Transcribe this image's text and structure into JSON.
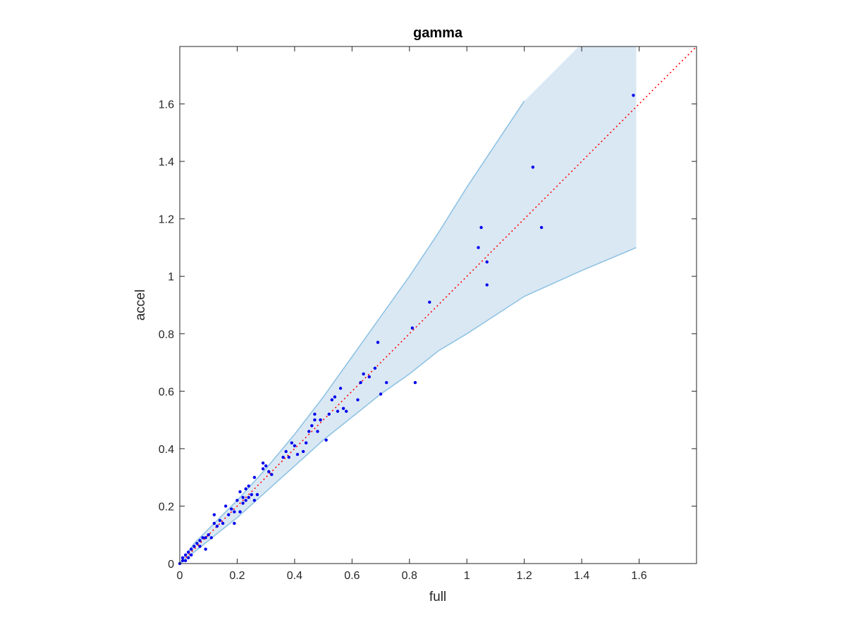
{
  "chart_data": {
    "type": "scatter",
    "title": "gamma",
    "xlabel": "full",
    "ylabel": "accel",
    "xlim": [
      0,
      1.8
    ],
    "ylim": [
      0,
      1.8
    ],
    "x_ticks": [
      "0",
      "0.2",
      "0.4",
      "0.6",
      "0.8",
      "1",
      "1.2",
      "1.4",
      "1.6"
    ],
    "y_ticks": [
      "0",
      "0.2",
      "0.4",
      "0.6",
      "0.8",
      "1",
      "1.2",
      "1.4",
      "1.6"
    ],
    "grid": false,
    "colors": {
      "points": "#0000ee",
      "reference_line": "#ff0000",
      "band_fill": "#dae8f4",
      "band_edge": "#8fc3e3",
      "axes": "#262626"
    },
    "band": {
      "upper": [
        [
          0,
          0
        ],
        [
          0.05,
          0.07
        ],
        [
          0.1,
          0.12
        ],
        [
          0.2,
          0.22
        ],
        [
          0.3,
          0.33
        ],
        [
          0.4,
          0.45
        ],
        [
          0.5,
          0.58
        ],
        [
          0.6,
          0.72
        ],
        [
          0.7,
          0.86
        ],
        [
          0.8,
          1.0
        ],
        [
          0.9,
          1.15
        ],
        [
          1.0,
          1.31
        ],
        [
          1.2,
          1.61
        ],
        [
          1.39,
          1.8
        ],
        [
          1.59,
          1.8
        ]
      ],
      "lower": [
        [
          0,
          0
        ],
        [
          0.05,
          0.04
        ],
        [
          0.1,
          0.08
        ],
        [
          0.2,
          0.16
        ],
        [
          0.3,
          0.25
        ],
        [
          0.4,
          0.34
        ],
        [
          0.5,
          0.43
        ],
        [
          0.6,
          0.51
        ],
        [
          0.7,
          0.59
        ],
        [
          0.8,
          0.66
        ],
        [
          0.9,
          0.74
        ],
        [
          1.0,
          0.8
        ],
        [
          1.2,
          0.93
        ],
        [
          1.4,
          1.02
        ],
        [
          1.59,
          1.1
        ]
      ]
    },
    "reference_line": [
      [
        0,
        0
      ],
      [
        1.8,
        1.8
      ]
    ],
    "series": [
      {
        "x": [
          0.0,
          0.01,
          0.01,
          0.02,
          0.02,
          0.03,
          0.03,
          0.04,
          0.04,
          0.05,
          0.06,
          0.07,
          0.07,
          0.08,
          0.09,
          0.09,
          0.1,
          0.11,
          0.12,
          0.12,
          0.13,
          0.14,
          0.15,
          0.16,
          0.17,
          0.18,
          0.19,
          0.19,
          0.2,
          0.21,
          0.21,
          0.22,
          0.22,
          0.23,
          0.23,
          0.24,
          0.24,
          0.25,
          0.26,
          0.26,
          0.27,
          0.29,
          0.29,
          0.3,
          0.31,
          0.32,
          0.36,
          0.37,
          0.38,
          0.39,
          0.4,
          0.41,
          0.43,
          0.44,
          0.45,
          0.46,
          0.47,
          0.47,
          0.48,
          0.49,
          0.51,
          0.52,
          0.53,
          0.54,
          0.55,
          0.56,
          0.57,
          0.58,
          0.62,
          0.63,
          0.64,
          0.66,
          0.68,
          0.69,
          0.7,
          0.72,
          0.81,
          0.82,
          0.87,
          1.04,
          1.05,
          1.07,
          1.07,
          1.23,
          1.26,
          1.58
        ],
        "y": [
          0.0,
          0.01,
          0.02,
          0.01,
          0.03,
          0.04,
          0.02,
          0.05,
          0.03,
          0.06,
          0.07,
          0.06,
          0.08,
          0.09,
          0.05,
          0.09,
          0.1,
          0.09,
          0.14,
          0.17,
          0.13,
          0.15,
          0.14,
          0.2,
          0.17,
          0.19,
          0.14,
          0.18,
          0.22,
          0.18,
          0.25,
          0.21,
          0.23,
          0.26,
          0.22,
          0.27,
          0.23,
          0.24,
          0.3,
          0.22,
          0.24,
          0.33,
          0.35,
          0.34,
          0.32,
          0.31,
          0.37,
          0.39,
          0.37,
          0.42,
          0.41,
          0.38,
          0.39,
          0.42,
          0.46,
          0.48,
          0.52,
          0.5,
          0.46,
          0.5,
          0.43,
          0.52,
          0.57,
          0.58,
          0.53,
          0.61,
          0.54,
          0.53,
          0.57,
          0.63,
          0.66,
          0.65,
          0.68,
          0.77,
          0.59,
          0.63,
          0.82,
          0.63,
          0.91,
          1.1,
          1.17,
          1.05,
          0.97,
          1.38,
          1.17,
          1.63
        ]
      }
    ]
  }
}
